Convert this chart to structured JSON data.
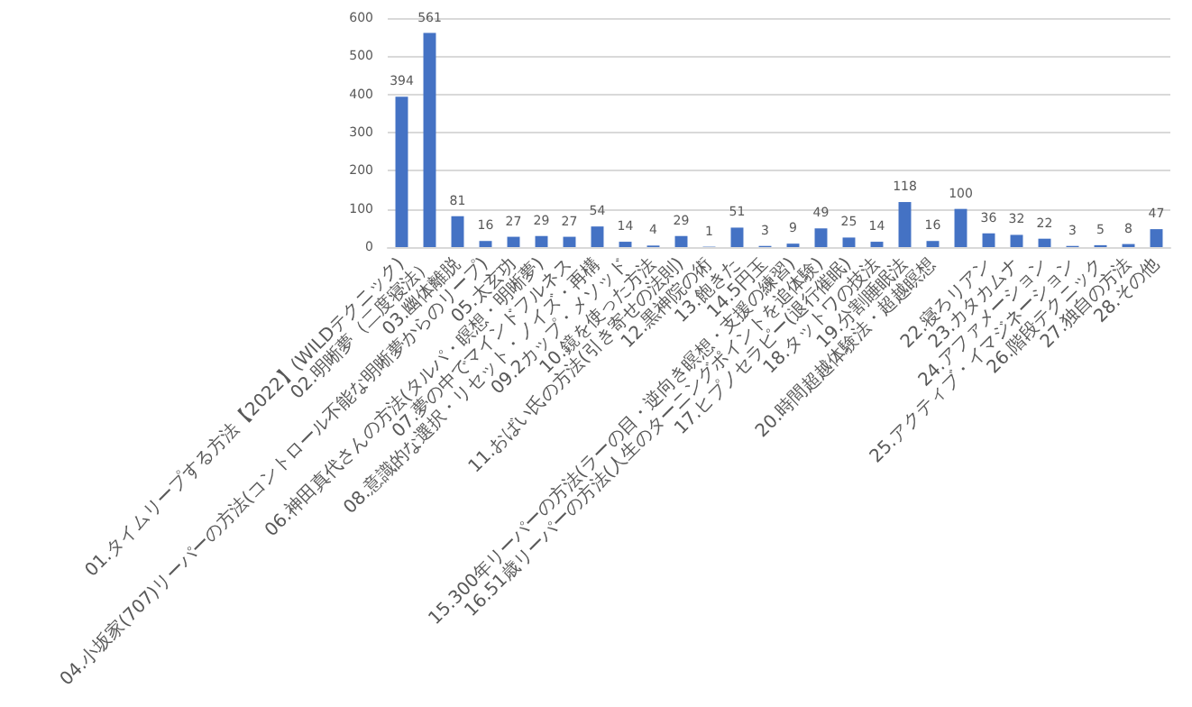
{
  "chart_data": {
    "type": "bar",
    "categories": [
      "01.タイムリープする方法【2022】(WILDテクニック)",
      "02.明晰夢（二度寝法）",
      "03.幽体離脱",
      "04.小坂家(707)リーパーの方法(コントロール不能な明晰夢からのリープ)",
      "05.太玄功",
      "06.神田真代さんの方法(タルパ・瞑想・明晰夢)",
      "07.夢の中でマインドフルネス",
      "08.意識的な選択・リセット・ノイズ・再構",
      "09.2カップ・メソッド",
      "10.鏡を使った方法",
      "11.おばい氏の方法(引き寄せの法則)",
      "12.黒神院の術",
      "13.飽きた",
      "14.5円玉",
      "15.300年リーパーの方法(ラーの目・逆向き瞑想・支援の練習)",
      "16.51歳リーパーの方法(人生のターニングポイントを追体験)",
      "17.ヒプノセラピー(退行催眠)",
      "18.タットワの技法",
      "19.分割睡眠法",
      "20.時間超越体験法・超越瞑想",
      null,
      "22.寝ろリアン",
      "23.カタカムナ",
      "24.アファメーション",
      "25.アクティブ・イマジネーション",
      "26.階段テクニック",
      "27.独自の方法",
      "28.その他"
    ],
    "values": [
      394,
      561,
      81,
      16,
      27,
      29,
      27,
      54,
      14,
      4,
      29,
      1,
      51,
      3,
      9,
      49,
      25,
      14,
      118,
      16,
      100,
      36,
      32,
      22,
      3,
      5,
      8,
      47
    ],
    "color": "#4472c4",
    "ylim": [
      0,
      600
    ],
    "yticks": [
      0,
      100,
      200,
      300,
      400,
      500,
      600
    ],
    "grid": "y",
    "data_labels": true
  }
}
